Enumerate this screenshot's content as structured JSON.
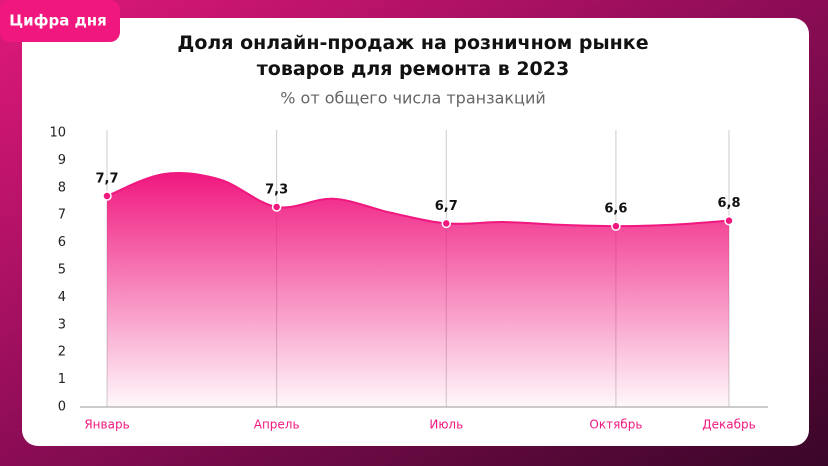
{
  "badge": "Цифра дня",
  "chart_data": {
    "type": "area",
    "title": "Доля онлайн-продаж на розничном рынке товаров для ремонта в 2023",
    "subtitle": "% от общего числа транзакций",
    "categories": [
      "Январь",
      null,
      null,
      "Апрель",
      null,
      null,
      "Июль",
      null,
      null,
      "Октябрь",
      null,
      "Декабрь"
    ],
    "values": [
      7.7,
      8.5,
      8.3,
      7.3,
      7.6,
      7.1,
      6.7,
      6.75,
      6.65,
      6.6,
      6.65,
      6.8
    ],
    "value_labels": [
      "7,7",
      null,
      null,
      "7,3",
      null,
      null,
      "6,7",
      null,
      null,
      "6,6",
      null,
      "6,8"
    ],
    "color": "#f0187f",
    "ylim": [
      0,
      10
    ],
    "yticks": [
      0,
      1,
      2,
      3,
      4,
      5,
      6,
      7,
      8,
      9,
      10
    ]
  }
}
